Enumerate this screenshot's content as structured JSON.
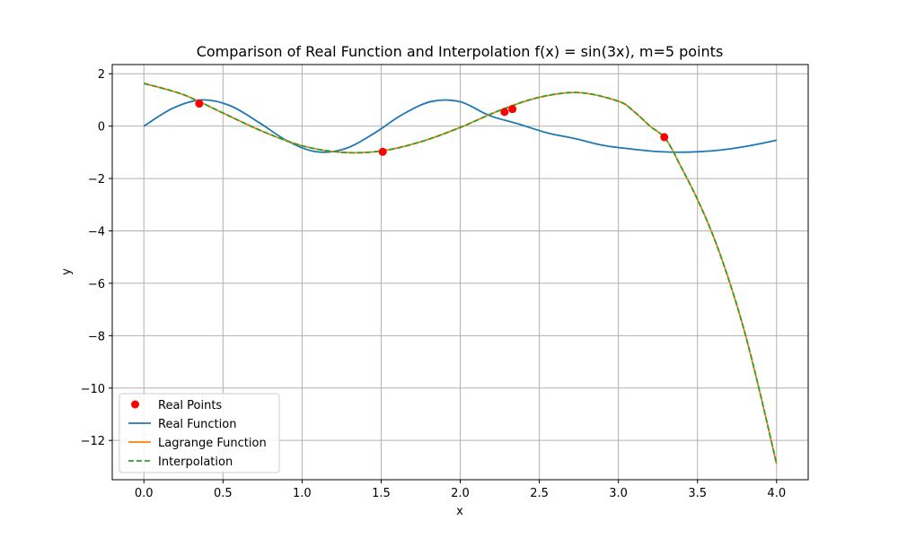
{
  "chart_data": {
    "type": "line",
    "title": "Comparison of Real Function and Interpolation f(x) = sin(3x), m=5 points",
    "xlabel": "x",
    "ylabel": "y",
    "xlim": [
      -0.2,
      4.2
    ],
    "ylim": [
      -13.5,
      2.35
    ],
    "x_ticks": [
      0.0,
      0.5,
      1.0,
      1.5,
      2.0,
      2.5,
      3.0,
      3.5,
      4.0
    ],
    "x_tick_labels": [
      "0.0",
      "0.5",
      "1.0",
      "1.5",
      "2.0",
      "2.5",
      "3.0",
      "3.5",
      "4.0"
    ],
    "y_ticks": [
      2,
      0,
      -2,
      -4,
      -6,
      -8,
      -10,
      -12
    ],
    "y_tick_labels": [
      "2",
      "0",
      "−2",
      "−4",
      "−6",
      "−8",
      "−10",
      "−12"
    ],
    "grid": true,
    "legend_position": "bottom-left",
    "x_samples": [
      0.0,
      0.25,
      0.5,
      0.75,
      1.0,
      1.25,
      1.5,
      1.75,
      2.0,
      2.25,
      2.5,
      2.75,
      3.0,
      3.1,
      3.2,
      3.3,
      3.4,
      3.5,
      3.6,
      3.7,
      3.8,
      3.9,
      4.0
    ],
    "series": [
      {
        "name": "Real Points",
        "kind": "points",
        "color": "#ff0000",
        "x": [
          0.35,
          1.51,
          2.28,
          2.33,
          3.29
        ],
        "y": [
          0.86,
          -0.98,
          0.54,
          0.65,
          -0.42
        ]
      },
      {
        "name": "Real Function",
        "kind": "function",
        "color": "#1f77b4",
        "x_range": [
          0.0,
          4.0
        ],
        "y_samples": [
          0.0,
          0.68,
          1.0,
          0.78,
          0.14,
          -0.57,
          -0.98,
          -0.86,
          -0.28,
          0.45,
          0.94,
          0.93,
          0.41,
          0.09,
          -0.25,
          -0.48,
          -0.74,
          -0.88,
          -0.98,
          -0.99,
          -0.92,
          -0.76,
          -0.54
        ]
      },
      {
        "name": "Lagrange Function",
        "kind": "line",
        "color": "#ff7f0e",
        "x_ref": "x_samples",
        "y": [
          1.63,
          1.2,
          0.5,
          -0.2,
          -0.75,
          -1.0,
          -0.95,
          -0.6,
          -0.05,
          0.6,
          1.1,
          1.28,
          0.95,
          0.55,
          0.0,
          -0.5,
          -1.6,
          -2.8,
          -4.2,
          -5.9,
          -7.9,
          -10.3,
          -12.9
        ]
      },
      {
        "name": "Interpolation",
        "kind": "line",
        "style": "dashed",
        "color": "#2ca02c",
        "x_ref": "x_samples",
        "y": [
          1.63,
          1.2,
          0.5,
          -0.2,
          -0.75,
          -1.0,
          -0.95,
          -0.6,
          -0.05,
          0.6,
          1.1,
          1.28,
          0.95,
          0.55,
          0.0,
          -0.5,
          -1.6,
          -2.8,
          -4.2,
          -5.9,
          -7.9,
          -10.3,
          -12.9
        ]
      }
    ]
  }
}
